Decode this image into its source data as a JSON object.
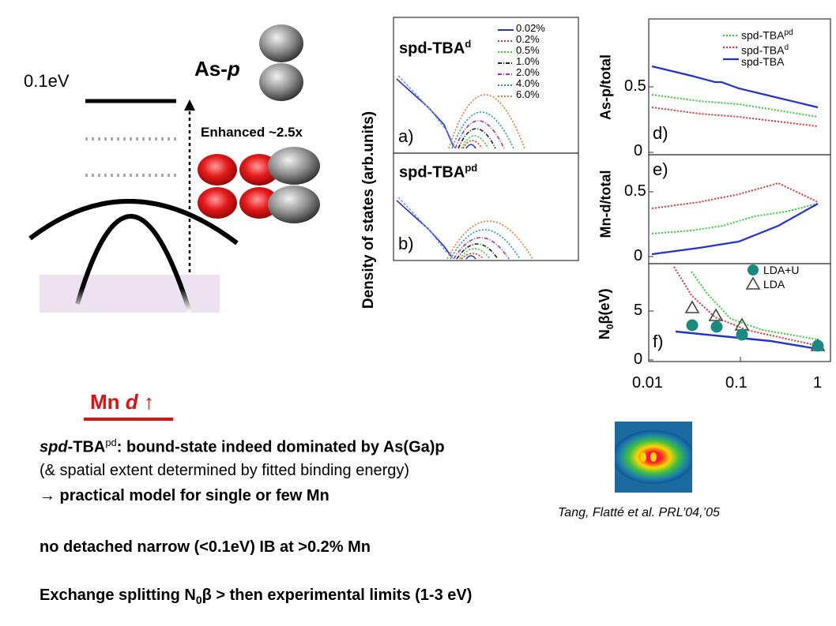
{
  "diagram": {
    "energy_label": "0.1eV",
    "orbital_label_main": "As-",
    "orbital_label_ital": "p",
    "enhanced_label": "Enhanced ~2.5x",
    "mn_label_main": "Mn ",
    "mn_label_ital": "d",
    "mn_arrow": "↑"
  },
  "panels_left": {
    "ylabel": "Density of states (arb.units)",
    "panel_a_title": "spd-TBA",
    "panel_a_sup": "d",
    "panel_a_tag": "a)",
    "panel_b_title": "spd-TBA",
    "panel_b_sup": "pd",
    "panel_b_tag": "b)",
    "legend": [
      {
        "label": "0.02%",
        "color": "#2233cc"
      },
      {
        "label": "0.2%",
        "color": "#dd3333"
      },
      {
        "label": "0.5%",
        "color": "#33cc33"
      },
      {
        "label": "1.0%",
        "color": "#222222"
      },
      {
        "label": "2.0%",
        "color": "#aa33aa"
      },
      {
        "label": "4.0%",
        "color": "#2299aa"
      },
      {
        "label": "6.0%",
        "color": "#ee7733"
      }
    ]
  },
  "panels_right": {
    "d_ylabel": "As-p/total",
    "e_ylabel": "Mn-d/total",
    "f_ylabel_a": "N",
    "f_ylabel_sub": "0",
    "f_ylabel_b": "β(eV)",
    "d_tag": "d)",
    "e_tag": "e)",
    "f_tag": "f)",
    "d_ticks": [
      "0.5",
      "0"
    ],
    "e_ticks": [
      "0.5",
      "0"
    ],
    "f_ticks": [
      "5",
      "0"
    ],
    "x_ticks": [
      "0.01",
      "0.1",
      "1"
    ],
    "legend": [
      {
        "label": "spd-TBA",
        "sup": "pd",
        "color": "#33cc33"
      },
      {
        "label": "spd-TBA",
        "sup": "d",
        "color": "#dd3333"
      },
      {
        "label": "spd-TBA",
        "sup": "",
        "color": "#2233cc"
      }
    ],
    "f_legend": [
      {
        "label": "LDA+U",
        "color": "#1a8a80"
      },
      {
        "label": "LDA",
        "color": "#444444"
      }
    ]
  },
  "citation": "Tang, Flatté et al. PRL’04,’05",
  "text": {
    "line1_a": "spd",
    "line1_b": "-TBA",
    "line1_sup": "pd",
    "line1_c": ": bound-state indeed dominated by As(Ga)p",
    "line2": "(& spatial extent determined by fitted binding energy)",
    "line3_arrow": "→",
    "line3": " practical model for single or few Mn",
    "line4": "no detached narrow (<0.1eV) IB at >0.2% Mn",
    "line5_a": "Exchange splitting N",
    "line5_sub": "0",
    "line5_beta": "β",
    "line5_b": " > then experimental limits (1-3 eV)"
  }
}
